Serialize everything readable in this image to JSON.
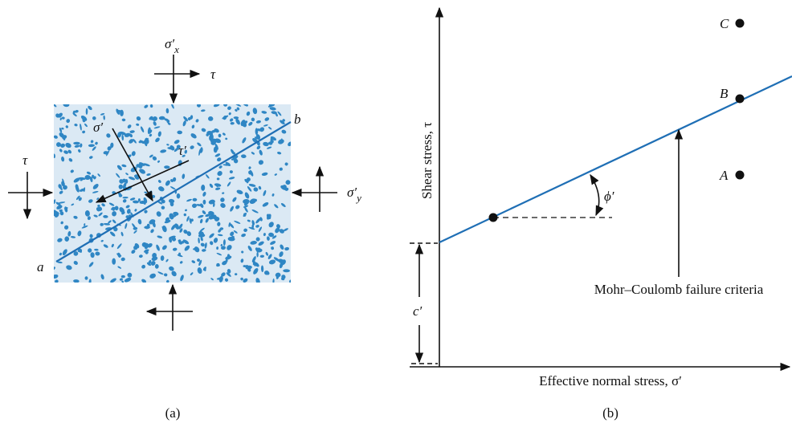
{
  "panel_a": {
    "caption": "(a)",
    "sigma_x": {
      "symbol": "σ′",
      "subscript": "x"
    },
    "tau_top": "τ",
    "tau_left": "τ",
    "sigma_y": {
      "symbol": "σ′",
      "subscript": "y"
    },
    "sigma_plane": "σ′",
    "tau_plane": "τ′",
    "end_a": "a",
    "end_b": "b"
  },
  "panel_b": {
    "caption": "(b)",
    "y_axis_label": "Shear stress, τ",
    "x_axis_label": "Effective normal stress, σ′",
    "point_c": "C",
    "point_b": "B",
    "point_a": "A",
    "angle": "ϕ′",
    "line_label": "Mohr–Coulomb failure criteria",
    "intercept": "c′"
  }
}
